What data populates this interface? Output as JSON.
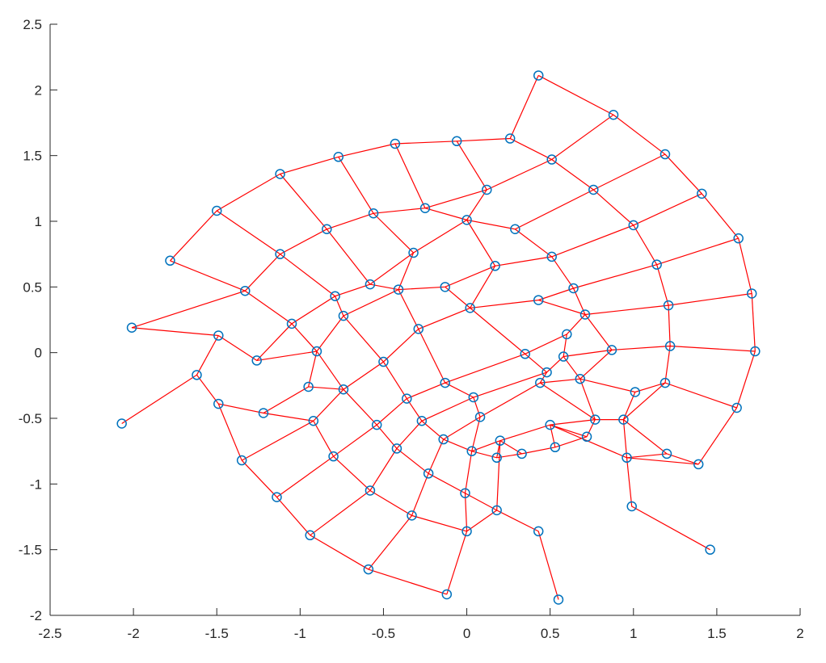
{
  "chart_data": {
    "type": "scatter",
    "title": "",
    "xlabel": "",
    "ylabel": "",
    "xlim": [
      -2.5,
      2
    ],
    "ylim": [
      -2,
      2.5
    ],
    "xticks": [
      "-2.5",
      "-2",
      "-1.5",
      "-1",
      "-0.5",
      "0",
      "0.5",
      "1",
      "1.5",
      "2"
    ],
    "yticks": [
      "-2",
      "-1.5",
      "-1",
      "-0.5",
      "0",
      "0.5",
      "1",
      "1.5",
      "2",
      "2.5"
    ],
    "grid": false,
    "colors": {
      "marker": "#0072bd",
      "edge": "#ff0000",
      "axis": "#262626"
    },
    "series": [
      {
        "values": [
          [
            -1.78,
            0.7
          ],
          [
            -1.5,
            1.08
          ],
          [
            -1.12,
            1.36
          ],
          [
            -0.77,
            1.49
          ],
          [
            -0.43,
            1.59
          ],
          [
            -0.06,
            1.61
          ],
          [
            0.26,
            1.63
          ],
          [
            0.43,
            2.11
          ]
        ]
      },
      {
        "values": [
          [
            -2.01,
            0.19
          ],
          [
            -1.33,
            0.47
          ],
          [
            -1.12,
            0.75
          ],
          [
            -0.84,
            0.94
          ],
          [
            -0.56,
            1.06
          ],
          [
            -0.25,
            1.1
          ],
          [
            0.12,
            1.24
          ],
          [
            0.51,
            1.47
          ],
          [
            0.88,
            1.81
          ]
        ]
      },
      {
        "values": [
          [
            -1.49,
            0.13
          ],
          [
            -1.26,
            -0.06
          ],
          [
            -1.05,
            0.22
          ],
          [
            -0.79,
            0.43
          ],
          [
            -0.58,
            0.52
          ],
          [
            -0.32,
            0.76
          ],
          [
            0.0,
            1.01
          ],
          [
            0.29,
            0.94
          ],
          [
            0.76,
            1.24
          ],
          [
            1.19,
            1.51
          ]
        ]
      },
      {
        "values": [
          [
            -2.07,
            -0.54
          ],
          [
            -1.62,
            -0.17
          ],
          [
            -1.49,
            -0.39
          ],
          [
            -1.22,
            -0.46
          ],
          [
            -0.95,
            -0.26
          ],
          [
            -0.9,
            0.01
          ],
          [
            -0.74,
            0.28
          ],
          [
            -0.41,
            0.48
          ],
          [
            -0.13,
            0.5
          ],
          [
            0.17,
            0.66
          ],
          [
            0.51,
            0.73
          ],
          [
            1.0,
            0.97
          ],
          [
            1.41,
            1.21
          ]
        ]
      },
      {
        "values": [
          [
            -1.35,
            -0.82
          ],
          [
            -0.92,
            -0.52
          ],
          [
            -0.74,
            -0.28
          ],
          [
            -0.5,
            -0.07
          ],
          [
            -0.29,
            0.18
          ],
          [
            0.02,
            0.34
          ],
          [
            0.43,
            0.4
          ],
          [
            0.64,
            0.49
          ],
          [
            1.14,
            0.67
          ],
          [
            1.63,
            0.87
          ]
        ]
      },
      {
        "values": [
          [
            -1.14,
            -1.1
          ],
          [
            -0.8,
            -0.79
          ],
          [
            -0.54,
            -0.55
          ],
          [
            -0.36,
            -0.35
          ],
          [
            -0.13,
            -0.23
          ],
          [
            0.35,
            -0.01
          ],
          [
            0.6,
            0.14
          ],
          [
            0.71,
            0.29
          ],
          [
            1.21,
            0.36
          ],
          [
            1.71,
            0.45
          ]
        ]
      },
      {
        "values": [
          [
            -0.94,
            -1.39
          ],
          [
            -0.58,
            -1.05
          ],
          [
            -0.42,
            -0.73
          ],
          [
            -0.27,
            -0.52
          ],
          [
            0.04,
            -0.34
          ],
          [
            0.48,
            -0.15
          ],
          [
            0.58,
            -0.03
          ],
          [
            0.87,
            0.02
          ],
          [
            1.22,
            0.05
          ],
          [
            1.73,
            0.01
          ]
        ]
      },
      {
        "values": [
          [
            -0.59,
            -1.65
          ],
          [
            -0.33,
            -1.24
          ],
          [
            -0.23,
            -0.92
          ],
          [
            -0.14,
            -0.66
          ],
          [
            0.08,
            -0.49
          ],
          [
            0.44,
            -0.23
          ],
          [
            0.68,
            -0.2
          ],
          [
            1.01,
            -0.3
          ],
          [
            1.19,
            -0.23
          ],
          [
            1.62,
            -0.42
          ]
        ]
      },
      {
        "values": [
          [
            -0.12,
            -1.84
          ],
          [
            0.0,
            -1.36
          ],
          [
            -0.01,
            -1.07
          ],
          [
            0.03,
            -0.75
          ],
          [
            0.18,
            -0.8
          ],
          [
            0.33,
            -0.77
          ],
          [
            0.53,
            -0.72
          ],
          [
            0.72,
            -0.64
          ],
          [
            0.77,
            -0.51
          ],
          [
            0.94,
            -0.51
          ],
          [
            1.2,
            -0.77
          ],
          [
            1.39,
            -0.85
          ]
        ]
      },
      {
        "values": [
          [
            0.55,
            -1.88
          ],
          [
            0.43,
            -1.36
          ],
          [
            0.18,
            -1.2
          ],
          [
            0.2,
            -0.67
          ],
          [
            0.5,
            -0.55
          ],
          [
            0.96,
            -0.8
          ],
          [
            0.99,
            -1.17
          ],
          [
            1.46,
            -1.5
          ]
        ]
      }
    ]
  }
}
